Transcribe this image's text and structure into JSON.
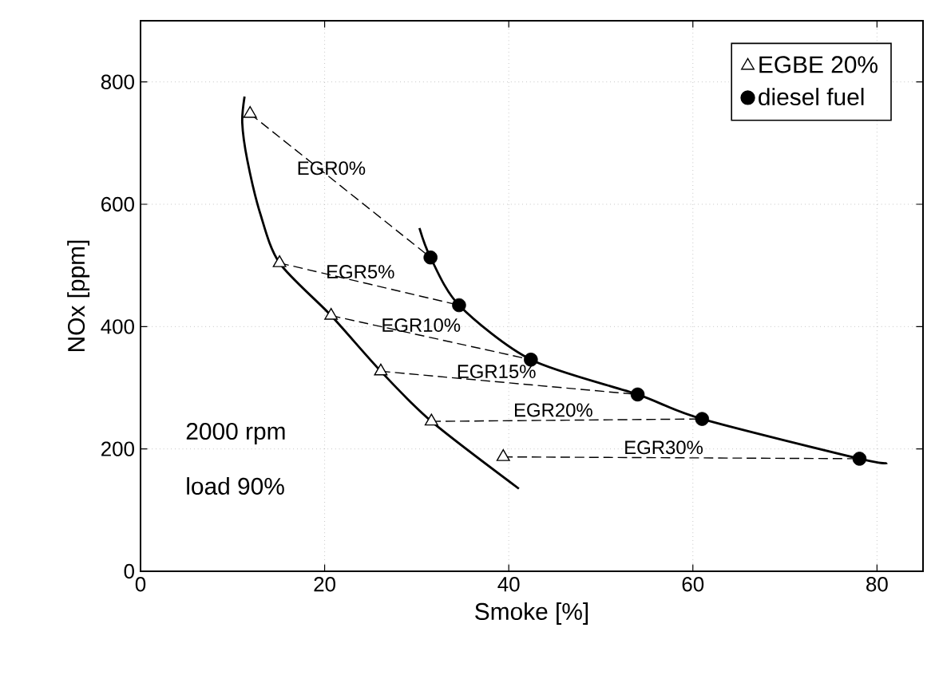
{
  "chart_data": {
    "type": "scatter",
    "xlabel": "Smoke [%]",
    "ylabel": "NOx [ppm]",
    "xlim": [
      0,
      85
    ],
    "ylim": [
      0,
      900
    ],
    "xticks": [
      0,
      20,
      40,
      60,
      80
    ],
    "yticks": [
      0,
      200,
      400,
      600,
      800
    ],
    "grid": true,
    "legend": "top right",
    "series": [
      {
        "type": "line",
        "color": "#000000",
        "line_style": "solid",
        "marker": "none",
        "x": [
          11.3,
          11.05,
          11.6,
          13.0,
          15.1,
          20.7,
          26.1,
          31.6,
          41.1
        ],
        "values": [
          776,
          733,
          672,
          585,
          504,
          418,
          327,
          245,
          135
        ]
      },
      {
        "type": "line",
        "color": "#000000",
        "line_style": "solid",
        "marker": "none",
        "x": [
          30.3,
          31.5,
          34.6,
          42.4,
          54.0,
          61.0,
          78.1,
          81.1
        ],
        "values": [
          561,
          513,
          435,
          346,
          289,
          249,
          184,
          177
        ]
      },
      {
        "type": "line",
        "color": "#000000",
        "line_style": "dashed",
        "marker": "none",
        "x": [
          11.9,
          31.5
        ],
        "values": [
          748,
          513
        ]
      },
      {
        "type": "line",
        "color": "#000000",
        "line_style": "dashed",
        "marker": "none",
        "x": [
          15.1,
          34.6
        ],
        "values": [
          504,
          435
        ]
      },
      {
        "type": "line",
        "color": "#000000",
        "line_style": "dashed",
        "marker": "none",
        "x": [
          20.7,
          42.4
        ],
        "values": [
          418,
          346
        ]
      },
      {
        "type": "line",
        "color": "#000000",
        "line_style": "dashed",
        "marker": "none",
        "x": [
          26.1,
          54.0
        ],
        "values": [
          327,
          289
        ]
      },
      {
        "type": "line",
        "color": "#000000",
        "line_style": "dashed",
        "marker": "none",
        "x": [
          31.6,
          61.0
        ],
        "values": [
          245,
          249
        ]
      },
      {
        "type": "line",
        "color": "#000000",
        "line_style": "dashed",
        "marker": "none",
        "x": [
          39.4,
          78.1
        ],
        "values": [
          187,
          184
        ]
      },
      {
        "name": "EGBE  20%",
        "color": "#000000",
        "marker": "triangle",
        "x": [
          11.9,
          15.1,
          20.7,
          26.1,
          31.6,
          39.4
        ],
        "values": [
          748,
          504,
          418,
          327,
          245,
          187
        ]
      },
      {
        "name": "diesel fuel",
        "color": "#000000",
        "marker": "circle",
        "x": [
          31.5,
          34.6,
          42.4,
          54.0,
          61.0,
          78.1
        ],
        "values": [
          513,
          435,
          346,
          289,
          249,
          184
        ]
      }
    ],
    "annotations": [
      "EGR0%",
      "EGR5%",
      "EGR10%",
      "EGR15%",
      "EGR20%",
      "EGR30%",
      "2000 rpm",
      "load 90%"
    ]
  }
}
